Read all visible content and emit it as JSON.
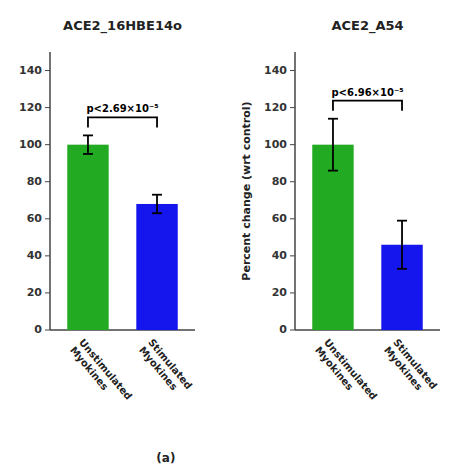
{
  "chart_data": [
    {
      "type": "bar",
      "title": "ACE2_16HBE14o",
      "categories": [
        "Unstimulated\nMyokines",
        "Stimulated\nMyokines"
      ],
      "values": [
        100,
        68
      ],
      "errors": [
        5,
        5
      ],
      "colors": [
        "#22aa22",
        "#1515ee"
      ],
      "ylim": [
        0,
        150
      ],
      "yticks": [
        0,
        20,
        40,
        60,
        80,
        100,
        120,
        140
      ],
      "annotation": "p<2.69×10⁻⁵",
      "footnote": "(a)"
    },
    {
      "type": "bar",
      "title": "ACE2_A54",
      "categories": [
        "Unstimulated\nMyokines",
        "Stimulated\nMyokines"
      ],
      "values": [
        100,
        46
      ],
      "errors": [
        14,
        13
      ],
      "colors": [
        "#22aa22",
        "#1515ee"
      ],
      "ylim": [
        0,
        150
      ],
      "yticks": [
        0,
        20,
        40,
        60,
        80,
        100,
        120,
        140
      ],
      "ylabel": "Percent change (wrt control)",
      "annotation": "p<6.96×10⁻⁵"
    }
  ]
}
